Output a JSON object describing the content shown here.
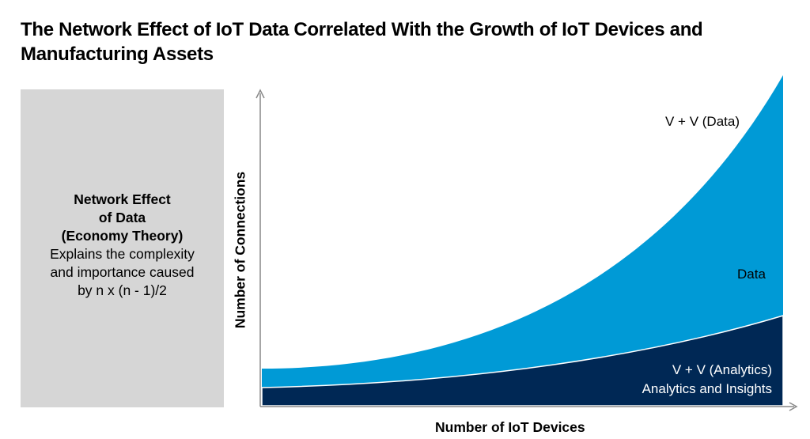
{
  "title": "The Network Effect of IoT Data Correlated With the Growth of IoT Devices and Manufacturing Assets",
  "side_panel": {
    "heading_line1": "Network Effect",
    "heading_line2": "of Data",
    "heading_line3": "(Economy Theory)",
    "body_line1": "Explains the complexity",
    "body_line2": "and importance caused",
    "body_line3": "by n x (n - 1)/2"
  },
  "diagram": {
    "y_axis_label": "Number of Connections",
    "x_axis_label": "Number of IoT Devices",
    "label_vv_data": "V + V (Data)",
    "label_data": "Data",
    "label_vv_analytics": "V + V (Analytics)",
    "label_analytics": "Analytics and Insights",
    "colors": {
      "data": "#009ad6",
      "analytics": "#002855",
      "panel": "#d6d6d6",
      "axis": "#888888"
    }
  }
}
